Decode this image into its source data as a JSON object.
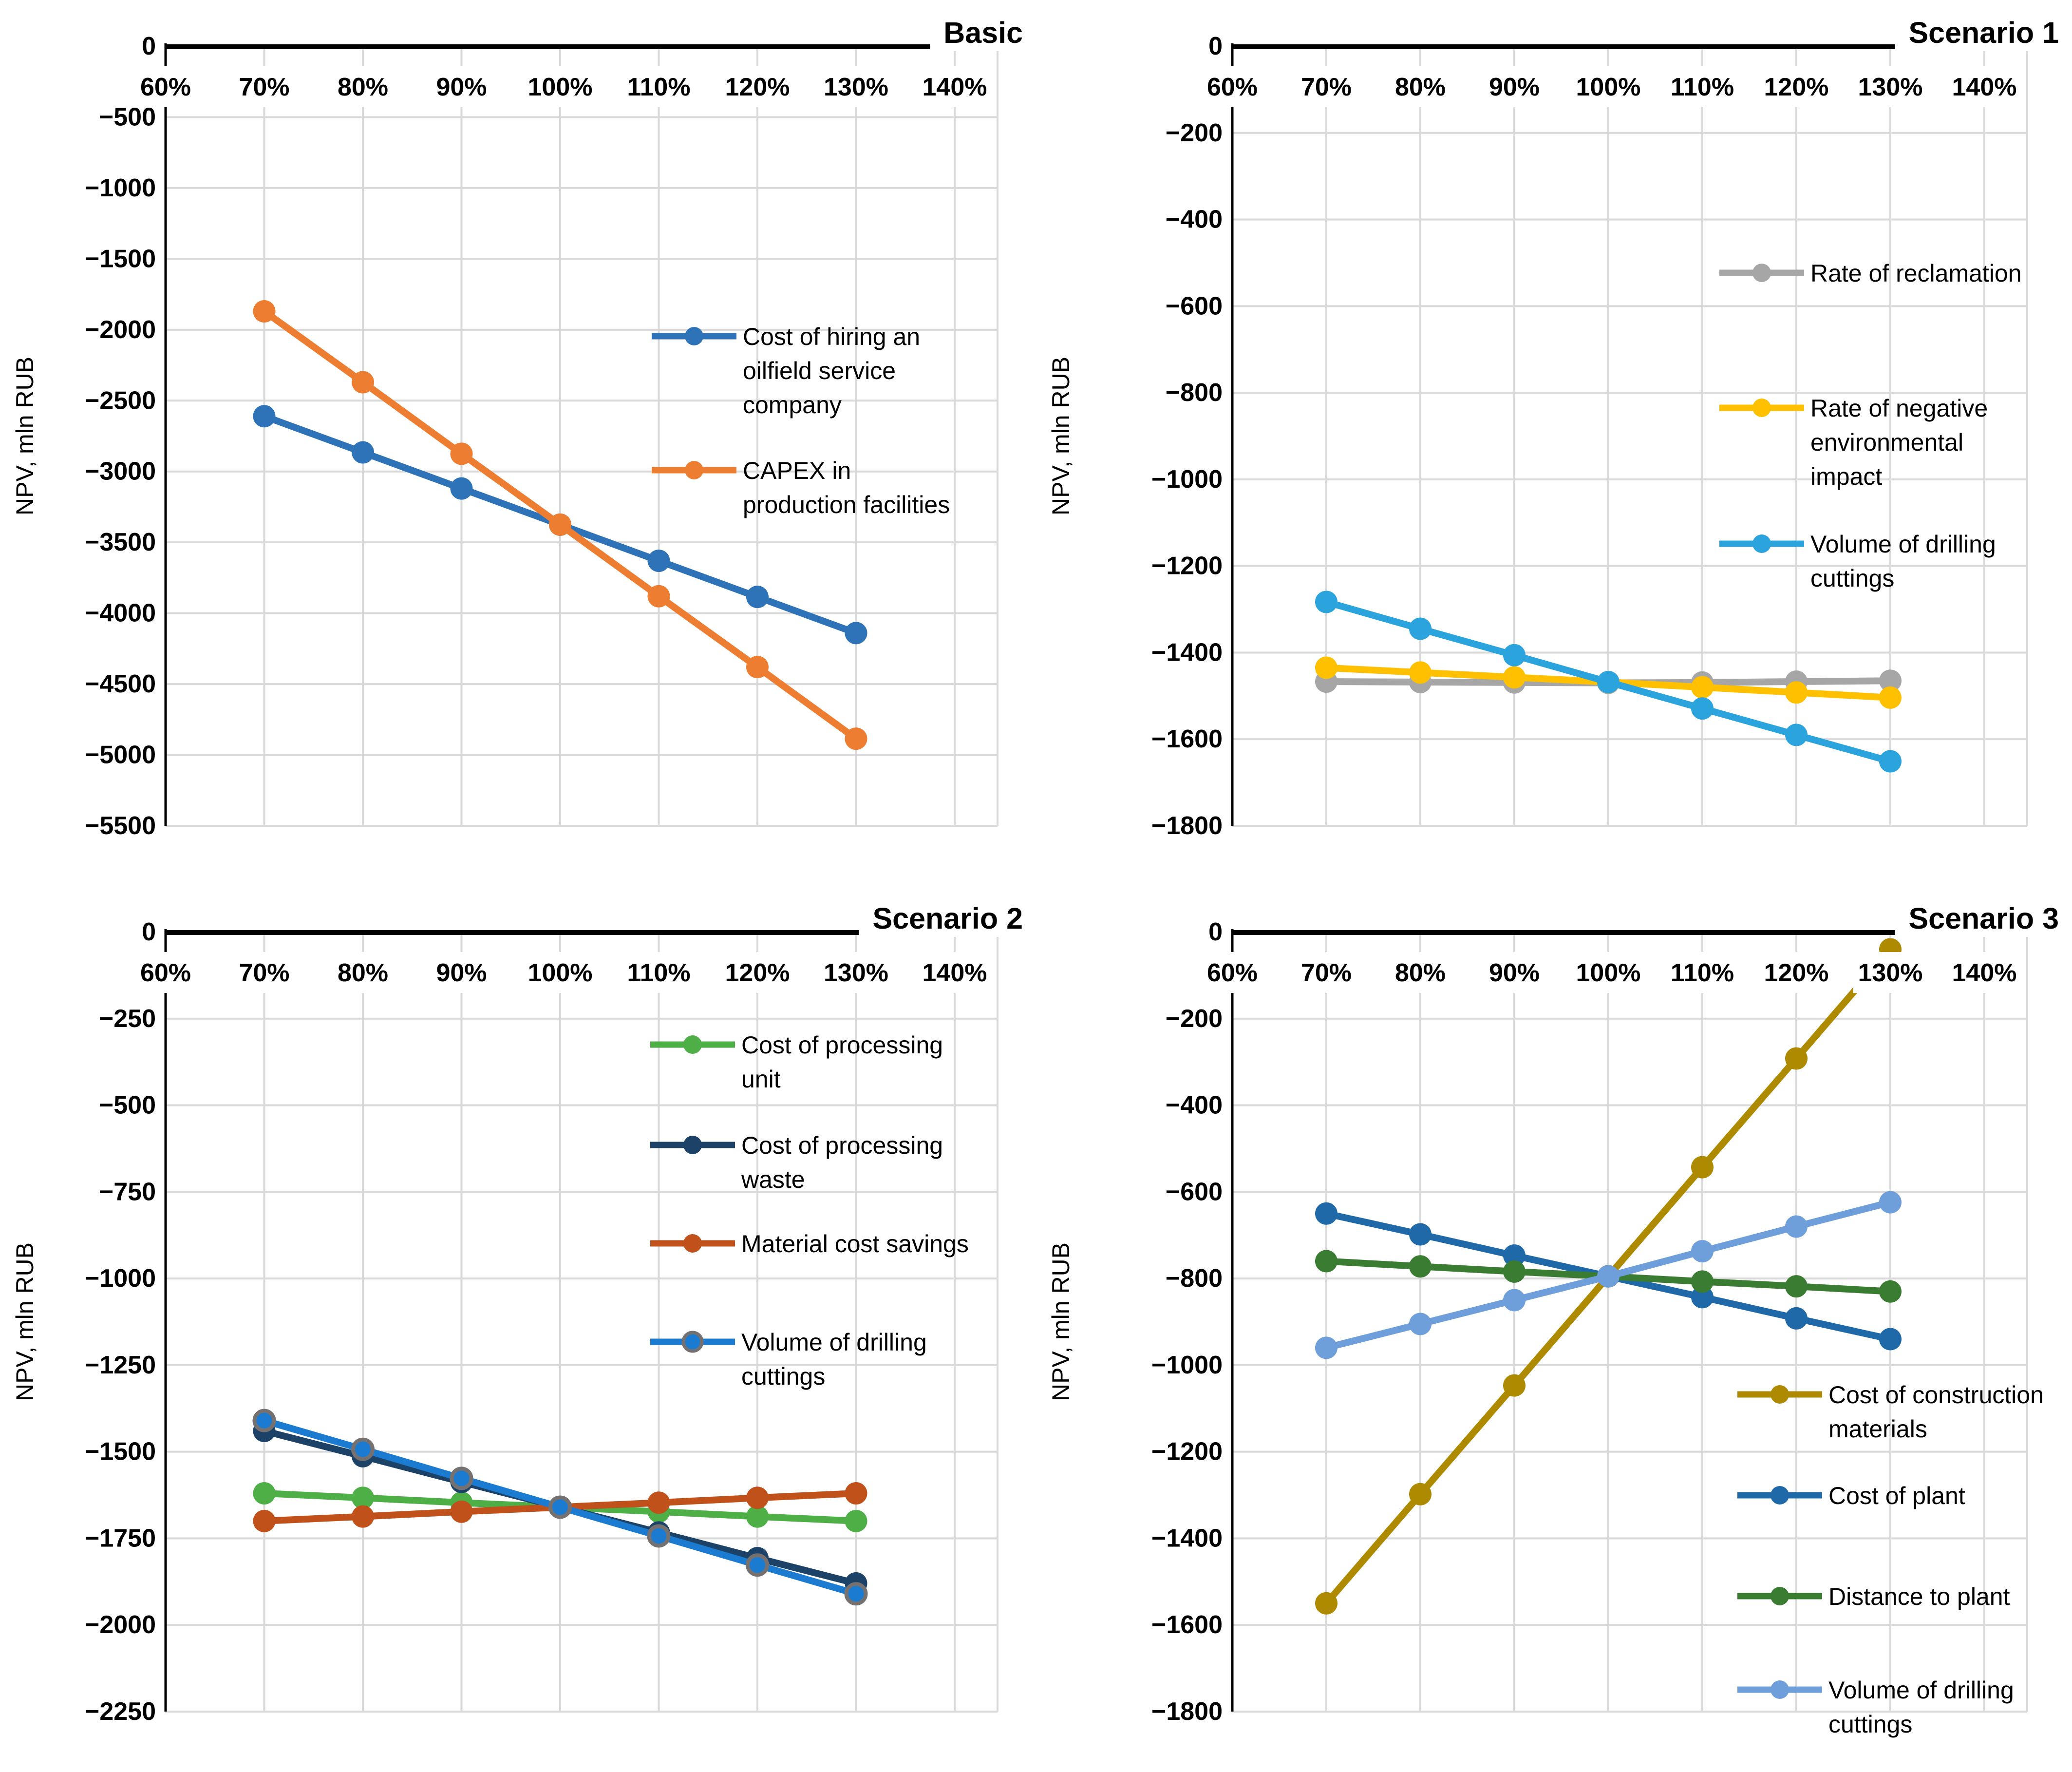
{
  "figure_background": "#FFFFFF",
  "grid_color": "#D9D9D9",
  "axis_color": "#000000",
  "chart_data": [
    {
      "type": "line",
      "title": "Basic",
      "ylabel": "NPV, mln RUB",
      "xlabel": "",
      "x_tick_labels": [
        "60%",
        "70%",
        "80%",
        "90%",
        "100%",
        "110%",
        "120%",
        "130%",
        "140%"
      ],
      "x_points": [
        70,
        80,
        90,
        100,
        110,
        120,
        130
      ],
      "ylim": [
        -5500,
        0
      ],
      "y_tick_values": [
        0,
        -500,
        -1000,
        -1500,
        -2000,
        -2500,
        -3000,
        -3500,
        -4000,
        -4500,
        -5000,
        -5500
      ],
      "y_tick_labels": [
        "0",
        "−500",
        "−1000",
        "−1500",
        "−2000",
        "−2500",
        "−3000",
        "−3500",
        "−4000",
        "−4500",
        "−5000",
        "−5500"
      ],
      "grid": true,
      "legend_position": "middle-right",
      "series": [
        {
          "name": "Cost of hiring an oilfield service company",
          "legend_lines": [
            "Cost of hiring an",
            "oilfield service",
            "company"
          ],
          "color": "#2E73B8",
          "values": [
            -2610,
            -2865,
            -3120,
            -3375,
            -3630,
            -3885,
            -4140
          ]
        },
        {
          "name": "CAPEX in production facilities",
          "legend_lines": [
            "CAPEX in",
            "production facilities"
          ],
          "color": "#ED7D31",
          "values": [
            -1870,
            -2370,
            -2875,
            -3375,
            -3880,
            -4380,
            -4885
          ]
        }
      ],
      "layout": {
        "plot_left": 340,
        "dx": 202.5,
        "legend": {
          "line_x1": 1338,
          "line_x2": 1512,
          "text_x": 1525,
          "entries_y": [
            690,
            965
          ]
        }
      }
    },
    {
      "type": "line",
      "title": "Scenario 1",
      "ylabel": "NPV, mln RUB",
      "xlabel": "",
      "x_tick_labels": [
        "60%",
        "70%",
        "80%",
        "90%",
        "100%",
        "110%",
        "120%",
        "130%",
        "140%"
      ],
      "x_points": [
        70,
        80,
        90,
        100,
        110,
        120,
        130
      ],
      "ylim": [
        -1800,
        0
      ],
      "y_tick_values": [
        0,
        -200,
        -400,
        -600,
        -800,
        -1000,
        -1200,
        -1400,
        -1600,
        -1800
      ],
      "y_tick_labels": [
        "0",
        "−200",
        "−400",
        "−600",
        "−800",
        "−1000",
        "−1200",
        "−1400",
        "−1600",
        "−1800"
      ],
      "grid": true,
      "legend_position": "upper-right",
      "series": [
        {
          "name": "Rate of reclamation",
          "legend_lines": [
            "Rate of reclamation"
          ],
          "color": "#A6A6A6",
          "values": [
            -1467,
            -1468,
            -1469,
            -1470,
            -1469,
            -1467,
            -1465
          ]
        },
        {
          "name": "Rate of negative environmental impact",
          "legend_lines": [
            "Rate of negative",
            "environmental",
            "impact"
          ],
          "color": "#FFC000",
          "values": [
            -1435,
            -1446,
            -1457,
            -1468,
            -1480,
            -1492,
            -1504
          ]
        },
        {
          "name": "Volume of drilling cuttings",
          "legend_lines": [
            "Volume of drilling",
            "cuttings"
          ],
          "color": "#2BA4DE",
          "values": [
            -1283,
            -1345,
            -1406,
            -1468,
            -1529,
            -1590,
            -1651
          ]
        }
      ],
      "layout": {
        "plot_left": 403,
        "dx": 193,
        "legend": {
          "line_x1": 1403,
          "line_x2": 1577,
          "text_x": 1590,
          "entries_y": [
            560,
            837,
            1116
          ]
        }
      }
    },
    {
      "type": "line",
      "title": "Scenario 2",
      "ylabel": "NPV, mln RUB",
      "xlabel": "",
      "x_tick_labels": [
        "60%",
        "70%",
        "80%",
        "90%",
        "100%",
        "110%",
        "120%",
        "130%",
        "140%"
      ],
      "x_points": [
        70,
        80,
        90,
        100,
        110,
        120,
        130
      ],
      "ylim": [
        -2250,
        0
      ],
      "y_tick_values": [
        0,
        -250,
        -500,
        -750,
        -1000,
        -1250,
        -1500,
        -1750,
        -2000,
        -2250
      ],
      "y_tick_labels": [
        "0",
        "−250",
        "−500",
        "−750",
        "−1000",
        "−1250",
        "−1500",
        "−1750",
        "−2000",
        "−2250"
      ],
      "grid": true,
      "legend_position": "upper-right",
      "series": [
        {
          "name": "Cost of processing unit",
          "legend_lines": [
            "Cost of processing",
            "unit"
          ],
          "color": "#4FAF47",
          "values": [
            -1620,
            -1633,
            -1647,
            -1660,
            -1673,
            -1687,
            -1700
          ]
        },
        {
          "name": "Cost of processing waste",
          "legend_lines": [
            "Cost of processing",
            "waste"
          ],
          "color": "#1C4268",
          "values": [
            -1440,
            -1513,
            -1587,
            -1660,
            -1733,
            -1807,
            -1880
          ]
        },
        {
          "name": "Material cost savings",
          "legend_lines": [
            "Material cost savings"
          ],
          "color": "#C0511B",
          "values": [
            -1700,
            -1687,
            -1673,
            -1660,
            -1647,
            -1633,
            -1620
          ]
        },
        {
          "name": "Volume of drilling cuttings",
          "legend_lines": [
            "Volume of drilling",
            "cuttings"
          ],
          "color": "#1B7BD0",
          "marker_stroke": "#767171",
          "values": [
            -1410,
            -1493,
            -1577,
            -1660,
            -1743,
            -1827,
            -1910
          ]
        }
      ],
      "layout": {
        "plot_left": 340,
        "dx": 202.5,
        "legend": {
          "line_x1": 1335,
          "line_x2": 1509,
          "text_x": 1522,
          "entries_y": [
            326,
            532,
            734,
            936
          ]
        }
      }
    },
    {
      "type": "line",
      "title": "Scenario 3",
      "ylabel": "NPV, mln RUB",
      "xlabel": "",
      "x_tick_labels": [
        "60%",
        "70%",
        "80%",
        "90%",
        "100%",
        "110%",
        "120%",
        "130%",
        "140%"
      ],
      "x_points": [
        70,
        80,
        90,
        100,
        110,
        120,
        130
      ],
      "ylim": [
        -1800,
        0
      ],
      "y_tick_values": [
        0,
        -200,
        -400,
        -600,
        -800,
        -1000,
        -1200,
        -1400,
        -1600,
        -1800
      ],
      "y_tick_labels": [
        "0",
        "−200",
        "−400",
        "−600",
        "−800",
        "−1000",
        "−1200",
        "−1400",
        "−1600",
        "−1800"
      ],
      "grid": true,
      "legend_position": "lower-right",
      "series": [
        {
          "name": "Cost of construction materials",
          "legend_lines": [
            "Cost of construction",
            "materials"
          ],
          "color": "#AE8A00",
          "values": [
            -1550,
            -1298,
            -1047,
            -795,
            -543,
            -292,
            -40
          ]
        },
        {
          "name": "Cost of plant",
          "legend_lines": [
            "Cost of plant"
          ],
          "color": "#2069A8",
          "values": [
            -650,
            -698,
            -747,
            -795,
            -843,
            -892,
            -940
          ]
        },
        {
          "name": "Distance to plant",
          "legend_lines": [
            "Distance to plant"
          ],
          "color": "#3A7D32",
          "values": [
            -760,
            -772,
            -784,
            -795,
            -807,
            -818,
            -830
          ]
        },
        {
          "name": "Volume of drilling cuttings",
          "legend_lines": [
            "Volume of drilling",
            "cuttings"
          ],
          "color": "#6F9FDB",
          "values": [
            -960,
            -905,
            -850,
            -795,
            -737,
            -680,
            -624
          ]
        }
      ],
      "layout": {
        "plot_left": 403,
        "dx": 193,
        "legend": {
          "line_x1": 1440,
          "line_x2": 1614,
          "text_x": 1627,
          "entries_y": [
            1044,
            1251,
            1458,
            1650
          ]
        }
      }
    }
  ]
}
